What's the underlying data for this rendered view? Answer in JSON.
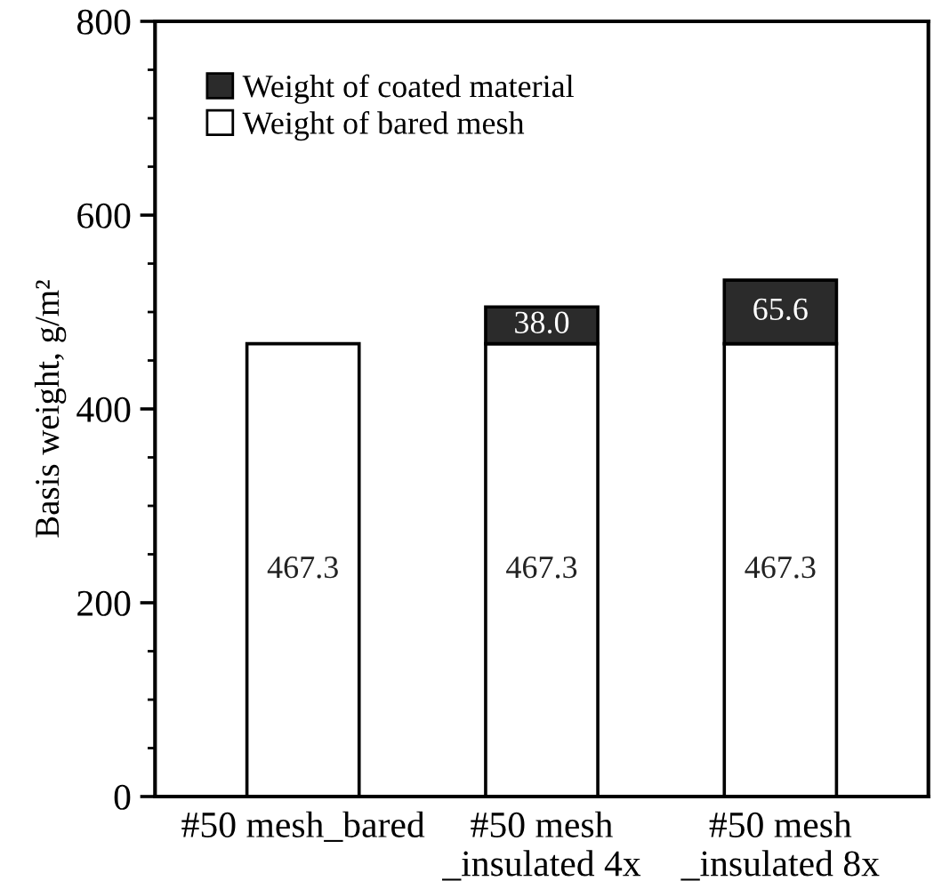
{
  "chart_data": {
    "type": "bar",
    "stacked": true,
    "ylabel": "Basis weight, g/m²",
    "categories": [
      "#50 mesh_bared",
      "#50 mesh\n_insulated 4x",
      "#50 mesh\n_insulated 8x"
    ],
    "series": [
      {
        "name": "Weight of bared mesh",
        "color": "#ffffff",
        "values": [
          467.3,
          467.3,
          467.3
        ],
        "value_labels": [
          "467.3",
          "467.3",
          "467.3"
        ]
      },
      {
        "name": "Weight of coated material",
        "color": "#2b2b2b",
        "values": [
          null,
          38.0,
          65.6
        ],
        "value_labels": [
          null,
          "38.0",
          "65.6"
        ]
      }
    ],
    "ylim": [
      0,
      800
    ],
    "yticks": [
      0,
      {
        "value": 50,
        "label": null
      },
      {
        "value": 100,
        "label": null
      },
      {
        "value": 150,
        "label": null
      },
      200,
      {
        "value": 250,
        "label": null
      },
      {
        "value": 300,
        "label": null
      },
      {
        "value": 350,
        "label": null
      },
      400,
      {
        "value": 450,
        "label": null
      },
      {
        "value": 500,
        "label": null
      },
      {
        "value": 550,
        "label": null
      },
      600,
      {
        "value": 650,
        "label": null
      },
      {
        "value": 700,
        "label": null
      },
      {
        "value": 750,
        "label": null
      },
      800
    ],
    "legend": "top left",
    "grid": false
  }
}
